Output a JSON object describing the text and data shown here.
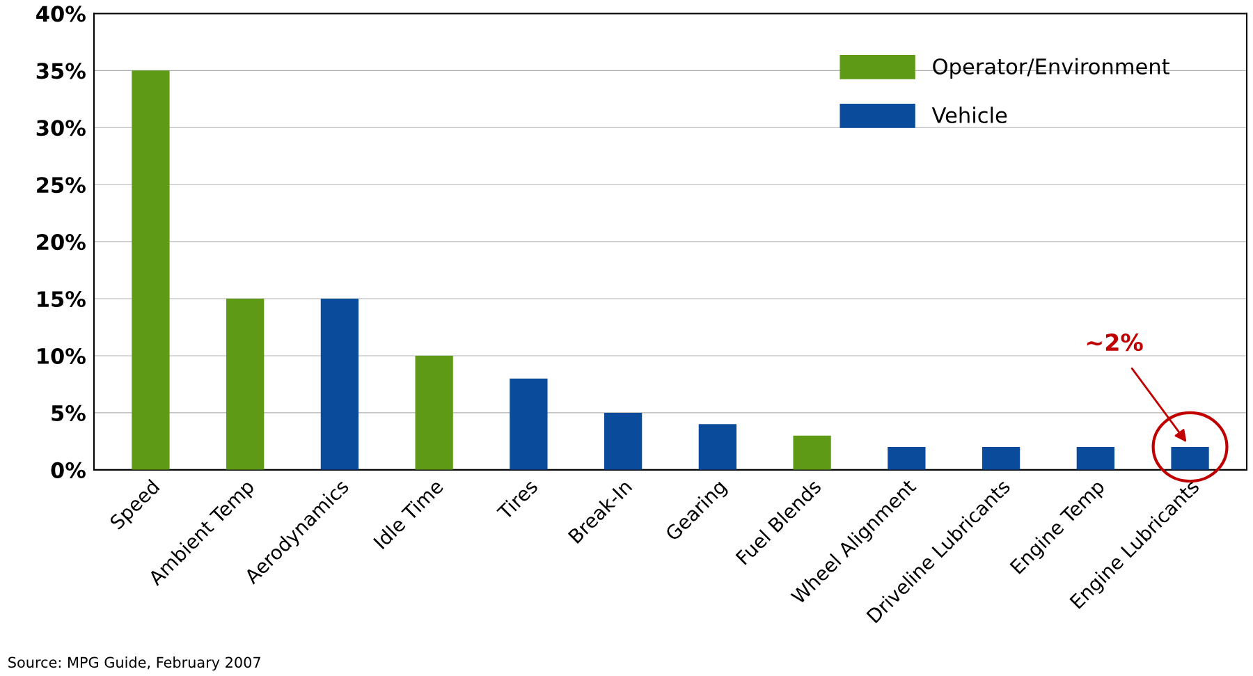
{
  "chart_data": {
    "type": "bar",
    "categories": [
      "Speed",
      "Ambient Temp",
      "Aerodynamics",
      "Idle Time",
      "Tires",
      "Break-In",
      "Gearing",
      "Fuel Blends",
      "Wheel Alignment",
      "Driveline Lubricants",
      "Engine Temp",
      "Engine Lubricants"
    ],
    "series": [
      {
        "name": "Operator/Environment",
        "color": "#5f9a16",
        "values": [
          35,
          15,
          null,
          10,
          null,
          null,
          null,
          3,
          null,
          null,
          null,
          null
        ]
      },
      {
        "name": "Vehicle",
        "color": "#0a4b9c",
        "values": [
          null,
          null,
          15,
          null,
          8,
          5,
          4,
          null,
          2,
          2,
          2,
          2
        ]
      }
    ],
    "ylim": [
      0,
      40
    ],
    "yticks": [
      {
        "value": 0,
        "label": "0%"
      },
      {
        "value": 5,
        "label": "5%"
      },
      {
        "value": 10,
        "label": "10%"
      },
      {
        "value": 15,
        "label": "15%"
      },
      {
        "value": 20,
        "label": "20%"
      },
      {
        "value": 25,
        "label": "25%"
      },
      {
        "value": 30,
        "label": "30%"
      },
      {
        "value": 35,
        "label": "35%"
      },
      {
        "value": 40,
        "label": "40%"
      }
    ],
    "grid": "y",
    "legend": "top right",
    "annotations": [
      "~2%",
      "Source: MPG Guide, February 2007"
    ]
  }
}
